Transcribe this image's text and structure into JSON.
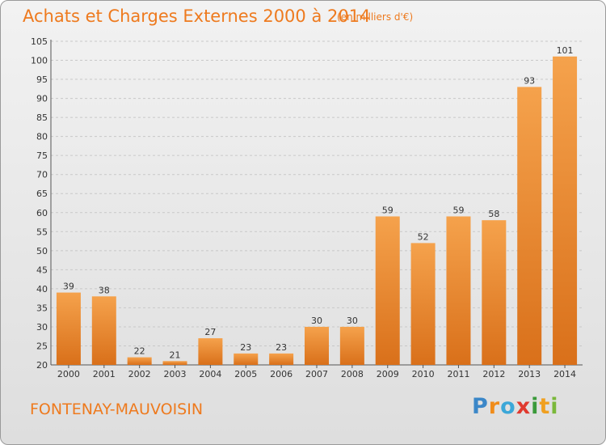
{
  "header": {
    "title": "Achats et Charges Externes 2000 à 2014",
    "subtitle": "(en milliers d'€)"
  },
  "footer": {
    "place": "FONTENAY-MAUVOISIN",
    "logo": {
      "p": "P",
      "r": "r",
      "o": "o",
      "x": "x",
      "i1": "i",
      "t": "t",
      "i2": "i"
    }
  },
  "colors": {
    "bar_light": "#f5a24c",
    "bar_dark": "#d9701a",
    "title": "#ee7a1e",
    "grid": "#c8c8c8"
  },
  "chart_data": {
    "type": "bar",
    "title": "Achats et Charges Externes 2000 à 2014",
    "subtitle": "(en milliers d'€)",
    "xlabel": "",
    "ylabel": "",
    "categories": [
      "2000",
      "2001",
      "2002",
      "2003",
      "2004",
      "2005",
      "2006",
      "2007",
      "2008",
      "2009",
      "2010",
      "2011",
      "2012",
      "2013",
      "2014"
    ],
    "values": [
      39,
      38,
      22,
      21,
      27,
      23,
      23,
      30,
      30,
      59,
      52,
      59,
      58,
      93,
      101
    ],
    "ylim": [
      20,
      105
    ],
    "yticks": [
      20,
      25,
      30,
      35,
      40,
      45,
      50,
      55,
      60,
      65,
      70,
      75,
      80,
      85,
      90,
      95,
      100,
      105
    ],
    "grid": "horizontal dashed",
    "legend": "none"
  }
}
